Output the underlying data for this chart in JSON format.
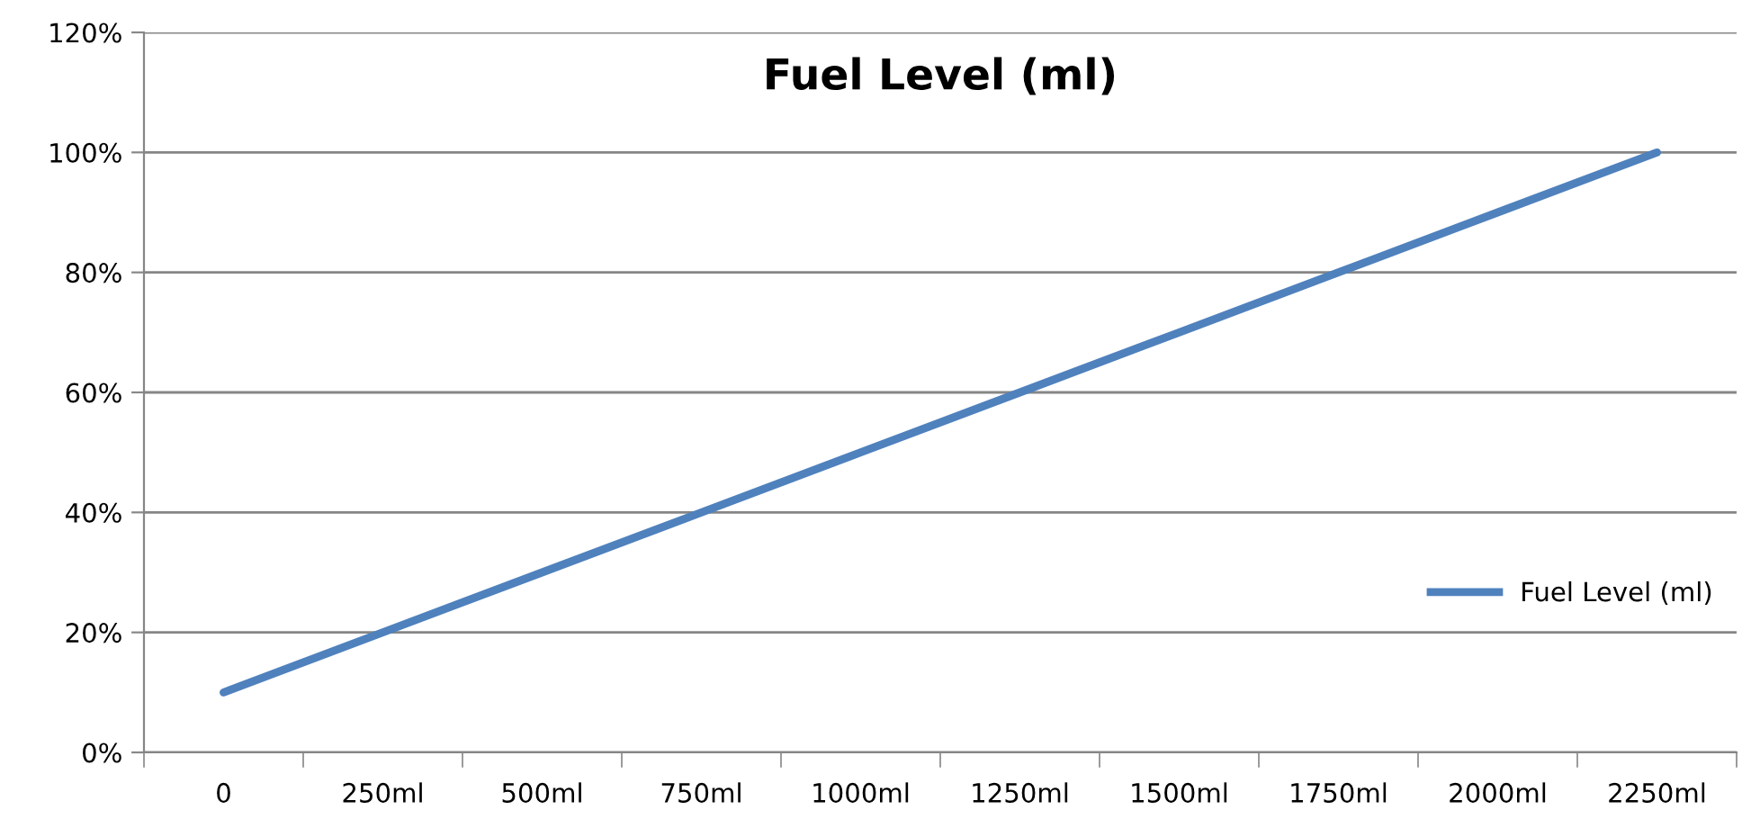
{
  "chart_data": {
    "type": "line",
    "title": "Fuel Level (ml)",
    "categories": [
      "0",
      "250ml",
      "500ml",
      "750ml",
      "1000ml",
      "1250ml",
      "1500ml",
      "1750ml",
      "2000ml",
      "2250ml"
    ],
    "series": [
      {
        "name": "Fuel Level (ml)",
        "color": "#4f81bd",
        "values": [
          10,
          20,
          30,
          40,
          50,
          60,
          70,
          80,
          90,
          100
        ]
      }
    ],
    "ylim": [
      0,
      120
    ],
    "yticks": [
      {
        "value": 0,
        "label": "0%"
      },
      {
        "value": 20,
        "label": "20%"
      },
      {
        "value": 40,
        "label": "40%"
      },
      {
        "value": 60,
        "label": "60%"
      },
      {
        "value": 80,
        "label": "80%"
      },
      {
        "value": 100,
        "label": "100%"
      },
      {
        "value": 120,
        "label": "120%"
      }
    ],
    "grid": "y",
    "legend": "right",
    "marker": "none",
    "line_style": "solid"
  }
}
